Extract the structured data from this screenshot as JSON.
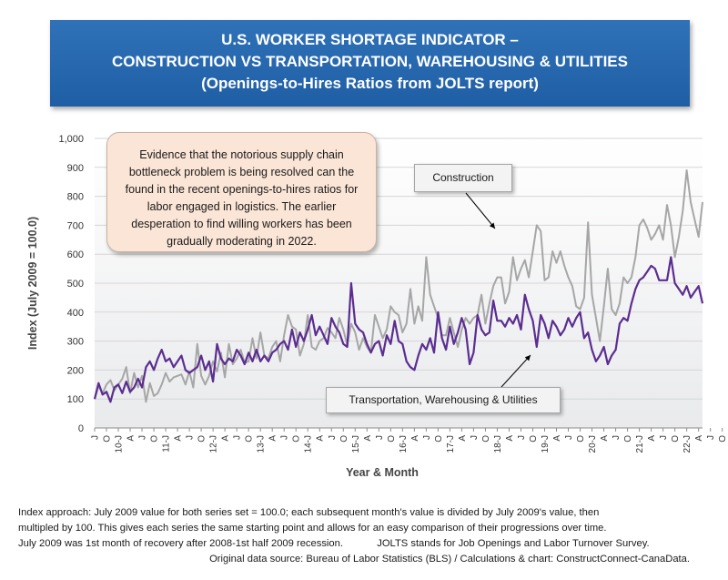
{
  "title": {
    "line1": "U.S. WORKER SHORTAGE INDICATOR –",
    "line2": "CONSTRUCTION VS TRANSPORTATION, WAREHOUSING & UTILITIES",
    "line3": "(Openings-to-Hires Ratios from JOLTS report)"
  },
  "callout_text": "Evidence that the notorious supply chain bottleneck problem is being resolved can the found in the recent openings-to-hires ratios for labor engaged in logistics. The earlier desperation to find willing workers has been gradually moderating in 2022.",
  "footnotes": {
    "line1": "Index approach: July 2009 value for both series set = 100.0; each subsequent month's value is divided by July 2009's value, then",
    "line2": "multipled by 100. This gives each series the same starting point and allows for an easy comparison of their progressions over time.",
    "line3a": "July 2009 was 1st month of recovery after 2008-1st half 2009 recession.",
    "line3b": "JOLTS stands for Job Openings and Labor Turnover Survey.",
    "line4": "Original data source: Bureau of Labor Statistics (BLS) / Calculations & chart: ConstructConnect-CanaData."
  },
  "colors": {
    "construction": "#a6a6a6",
    "transportation": "#5b2d91",
    "title_bg": "#2667ae",
    "callout_bg": "#fbe5d6",
    "plot_bg_top": "#ffffff",
    "plot_bg_bottom": "#e9eaec"
  },
  "chart_data": {
    "type": "line",
    "title": "U.S. WORKER SHORTAGE INDICATOR – CONSTRUCTION VS TRANSPORTATION, WAREHOUSING & UTILITIES (Openings-to-Hires Ratios from JOLTS report)",
    "xlabel": "Year & Month",
    "ylabel": "Index (July 2009 = 100.0)",
    "ylim": [
      0,
      1000
    ],
    "yticks": [
      0,
      100,
      200,
      300,
      400,
      500,
      600,
      700,
      800,
      900,
      1000
    ],
    "ytick_labels": [
      "0",
      "100",
      "200",
      "300",
      "400",
      "500",
      "600",
      "700",
      "800",
      "900",
      "1,000"
    ],
    "grid": true,
    "legend": "annotated labels",
    "x_start": "2009-07",
    "x_end": "2022-10",
    "xtick_labels": [
      "J",
      "O",
      "10-J",
      "A",
      "J",
      "O",
      "11-J",
      "A",
      "J",
      "O",
      "12-J",
      "A",
      "J",
      "O",
      "13-J",
      "A",
      "J",
      "O",
      "14-J",
      "A",
      "J",
      "O",
      "15-J",
      "A",
      "J",
      "O",
      "16-J",
      "A",
      "J",
      "O",
      "17-J",
      "A",
      "J",
      "O",
      "18-J",
      "A",
      "J",
      "O",
      "19-J",
      "A",
      "J",
      "O",
      "20-J",
      "A",
      "J",
      "O",
      "21-J",
      "A",
      "J",
      "O",
      "22-J",
      "A",
      "J",
      "O"
    ],
    "series": [
      {
        "name": "Construction",
        "label": "Construction",
        "values": [
          100,
          145,
          120,
          150,
          165,
          130,
          150,
          170,
          210,
          120,
          190,
          140,
          180,
          90,
          155,
          110,
          120,
          150,
          190,
          160,
          175,
          180,
          185,
          150,
          195,
          140,
          290,
          180,
          150,
          180,
          230,
          195,
          260,
          175,
          290,
          220,
          240,
          270,
          225,
          230,
          310,
          240,
          330,
          250,
          240,
          280,
          300,
          230,
          320,
          390,
          350,
          340,
          250,
          290,
          390,
          280,
          270,
          300,
          310,
          345,
          330,
          310,
          380,
          340,
          285,
          360,
          330,
          270,
          310,
          280,
          260,
          390,
          350,
          310,
          340,
          420,
          400,
          390,
          330,
          360,
          480,
          360,
          420,
          370,
          590,
          460,
          420,
          380,
          320,
          320,
          380,
          330,
          280,
          340,
          380,
          360,
          380,
          390,
          460,
          360,
          430,
          490,
          520,
          520,
          430,
          470,
          590,
          510,
          550,
          580,
          520,
          610,
          700,
          680,
          510,
          520,
          610,
          570,
          610,
          560,
          520,
          490,
          420,
          410,
          450,
          710,
          460,
          380,
          300,
          420,
          550,
          410,
          390,
          430,
          520,
          500,
          520,
          590,
          700,
          720,
          690,
          650,
          670,
          700,
          650,
          770,
          700,
          590,
          660,
          750,
          890,
          780,
          720,
          660,
          780
        ]
      },
      {
        "name": "Transportation, Warehousing & Utilities",
        "label": "Transportation, Warehousing & Utilities",
        "values": [
          100,
          155,
          115,
          125,
          90,
          140,
          150,
          120,
          160,
          125,
          140,
          170,
          140,
          210,
          230,
          200,
          240,
          270,
          230,
          240,
          210,
          230,
          250,
          200,
          190,
          200,
          210,
          250,
          200,
          230,
          160,
          290,
          240,
          220,
          240,
          230,
          270,
          250,
          220,
          260,
          230,
          270,
          230,
          250,
          230,
          260,
          270,
          290,
          300,
          270,
          340,
          280,
          330,
          300,
          340,
          390,
          320,
          350,
          320,
          290,
          380,
          350,
          330,
          290,
          280,
          500,
          360,
          340,
          330,
          290,
          260,
          290,
          300,
          250,
          320,
          290,
          370,
          300,
          290,
          230,
          210,
          200,
          250,
          290,
          270,
          310,
          260,
          400,
          310,
          270,
          350,
          290,
          330,
          380,
          340,
          220,
          260,
          390,
          340,
          320,
          330,
          440,
          370,
          370,
          350,
          380,
          360,
          390,
          340,
          460,
          410,
          370,
          280,
          390,
          360,
          310,
          370,
          350,
          320,
          340,
          380,
          350,
          380,
          400,
          310,
          330,
          270,
          230,
          250,
          280,
          220,
          250,
          270,
          360,
          380,
          370,
          430,
          480,
          510,
          520,
          540,
          560,
          550,
          510,
          510,
          510,
          590,
          500,
          480,
          460,
          490,
          450,
          470,
          490,
          430
        ]
      }
    ]
  }
}
